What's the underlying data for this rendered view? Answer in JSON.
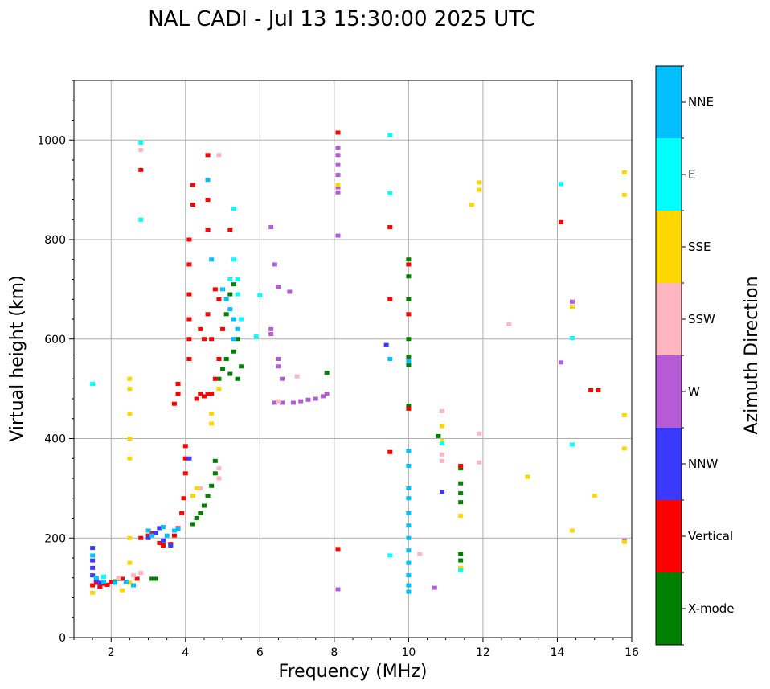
{
  "chart_data": {
    "type": "scatter",
    "title": "NAL CADI - Jul 13 15:30:00 2025 UTC",
    "xlabel": "Frequency (MHz)",
    "ylabel": "Virtual height (km)",
    "xlim": [
      1,
      16
    ],
    "ylim": [
      0,
      1120
    ],
    "xticks": [
      2,
      4,
      6,
      8,
      10,
      12,
      14,
      16
    ],
    "yticks": [
      0,
      200,
      400,
      600,
      800,
      1000
    ],
    "xtick_labels": [
      "2",
      "4",
      "6",
      "8",
      "10",
      "12",
      "14",
      "16"
    ],
    "ytick_labels": [
      "0",
      "200",
      "400",
      "600",
      "800",
      "1000"
    ],
    "grid": true,
    "colorbar": {
      "title": "Azimuth Direction",
      "categories": [
        {
          "label": "X-mode",
          "color": "#008000"
        },
        {
          "label": "Vertical",
          "color": "#ff0000"
        },
        {
          "label": "NNW",
          "color": "#3a3aff"
        },
        {
          "label": "W",
          "color": "#b65bd6"
        },
        {
          "label": "SSW",
          "color": "#ffb6c1"
        },
        {
          "label": "SSE",
          "color": "#ffd700"
        },
        {
          "label": "E",
          "color": "#00ffff"
        },
        {
          "label": "NNE",
          "color": "#00bfff"
        }
      ]
    },
    "series": [
      {
        "name": "X-mode",
        "color": "#008000",
        "points": [
          [
            2.1,
            113
          ],
          [
            2.2,
            118
          ],
          [
            3.1,
            118
          ],
          [
            3.2,
            118
          ],
          [
            4.2,
            228
          ],
          [
            4.3,
            240
          ],
          [
            4.4,
            250
          ],
          [
            4.5,
            265
          ],
          [
            4.6,
            285
          ],
          [
            4.7,
            305
          ],
          [
            4.8,
            330
          ],
          [
            4.8,
            355
          ],
          [
            4.9,
            520
          ],
          [
            5.0,
            540
          ],
          [
            5.1,
            560
          ],
          [
            5.2,
            530
          ],
          [
            5.3,
            575
          ],
          [
            5.4,
            520
          ],
          [
            5.5,
            545
          ],
          [
            5.4,
            600
          ],
          [
            5.2,
            690
          ],
          [
            5.1,
            650
          ],
          [
            5.3,
            710
          ],
          [
            7.8,
            532
          ],
          [
            10.0,
            760
          ],
          [
            10.0,
            680
          ],
          [
            10.0,
            600
          ],
          [
            10.0,
            565
          ],
          [
            10.0,
            548
          ],
          [
            10.0,
            466
          ],
          [
            10.0,
            726
          ],
          [
            10.8,
            405
          ],
          [
            11.4,
            340
          ],
          [
            11.4,
            310
          ],
          [
            11.4,
            290
          ],
          [
            11.4,
            272
          ],
          [
            11.4,
            168
          ],
          [
            11.4,
            155
          ],
          [
            11.4,
            138
          ]
        ]
      },
      {
        "name": "Vertical",
        "color": "#ff0000",
        "points": [
          [
            1.5,
            105
          ],
          [
            1.6,
            110
          ],
          [
            1.7,
            102
          ],
          [
            1.8,
            108
          ],
          [
            1.9,
            106
          ],
          [
            2.0,
            112
          ],
          [
            2.3,
            118
          ],
          [
            2.7,
            118
          ],
          [
            2.8,
            200
          ],
          [
            3.0,
            205
          ],
          [
            3.1,
            210
          ],
          [
            3.3,
            190
          ],
          [
            3.4,
            185
          ],
          [
            3.6,
            188
          ],
          [
            3.7,
            205
          ],
          [
            3.8,
            220
          ],
          [
            3.9,
            250
          ],
          [
            3.95,
            280
          ],
          [
            4.0,
            330
          ],
          [
            4.0,
            360
          ],
          [
            4.0,
            385
          ],
          [
            3.7,
            470
          ],
          [
            3.8,
            490
          ],
          [
            3.8,
            510
          ],
          [
            4.1,
            560
          ],
          [
            4.1,
            600
          ],
          [
            4.1,
            640
          ],
          [
            4.1,
            690
          ],
          [
            4.1,
            750
          ],
          [
            4.1,
            800
          ],
          [
            4.2,
            870
          ],
          [
            4.3,
            480
          ],
          [
            4.4,
            490
          ],
          [
            4.5,
            485
          ],
          [
            4.6,
            490
          ],
          [
            4.7,
            490
          ],
          [
            4.4,
            620
          ],
          [
            4.5,
            600
          ],
          [
            4.6,
            650
          ],
          [
            4.6,
            820
          ],
          [
            4.6,
            880
          ],
          [
            4.7,
            600
          ],
          [
            4.8,
            520
          ],
          [
            4.9,
            560
          ],
          [
            4.8,
            700
          ],
          [
            4.9,
            680
          ],
          [
            5.0,
            620
          ],
          [
            5.2,
            820
          ],
          [
            2.8,
            940
          ],
          [
            4.2,
            910
          ],
          [
            4.6,
            970
          ],
          [
            8.1,
            1015
          ],
          [
            8.1,
            178
          ],
          [
            9.5,
            825
          ],
          [
            9.5,
            680
          ],
          [
            9.5,
            373
          ],
          [
            10.0,
            750
          ],
          [
            10.0,
            650
          ],
          [
            10.0,
            460
          ],
          [
            11.4,
            345
          ],
          [
            14.1,
            835
          ],
          [
            14.9,
            497
          ],
          [
            15.1,
            497
          ]
        ]
      },
      {
        "name": "NNW",
        "color": "#3a3aff",
        "points": [
          [
            1.5,
            180
          ],
          [
            1.5,
            155
          ],
          [
            1.5,
            140
          ],
          [
            1.5,
            125
          ],
          [
            1.6,
            115
          ],
          [
            1.7,
            110
          ],
          [
            3.0,
            200
          ],
          [
            3.2,
            210
          ],
          [
            3.3,
            220
          ],
          [
            3.4,
            195
          ],
          [
            3.6,
            185
          ],
          [
            4.1,
            360
          ],
          [
            9.4,
            588
          ],
          [
            10.9,
            293
          ]
        ]
      },
      {
        "name": "W",
        "color": "#b65bd6",
        "points": [
          [
            6.3,
            825
          ],
          [
            6.4,
            750
          ],
          [
            6.5,
            705
          ],
          [
            6.8,
            695
          ],
          [
            6.3,
            620
          ],
          [
            6.3,
            610
          ],
          [
            6.5,
            560
          ],
          [
            6.5,
            545
          ],
          [
            6.6,
            520
          ],
          [
            6.4,
            472
          ],
          [
            6.6,
            472
          ],
          [
            6.9,
            472
          ],
          [
            7.1,
            475
          ],
          [
            7.3,
            478
          ],
          [
            7.5,
            480
          ],
          [
            7.7,
            485
          ],
          [
            7.8,
            490
          ],
          [
            8.1,
            985
          ],
          [
            8.1,
            970
          ],
          [
            8.1,
            950
          ],
          [
            8.1,
            930
          ],
          [
            8.1,
            905
          ],
          [
            8.1,
            895
          ],
          [
            8.1,
            808
          ],
          [
            8.1,
            97
          ],
          [
            10.7,
            100
          ],
          [
            14.1,
            553
          ],
          [
            14.4,
            675
          ],
          [
            15.8,
            195
          ]
        ]
      },
      {
        "name": "SSW",
        "color": "#ffb6c1",
        "points": [
          [
            2.8,
            980
          ],
          [
            4.9,
            970
          ],
          [
            4.9,
            340
          ],
          [
            4.9,
            320
          ],
          [
            4.4,
            300
          ],
          [
            2.2,
            120
          ],
          [
            2.6,
            125
          ],
          [
            2.8,
            130
          ],
          [
            10.9,
            455
          ],
          [
            10.9,
            368
          ],
          [
            10.9,
            355
          ],
          [
            10.3,
            168
          ],
          [
            11.9,
            410
          ],
          [
            11.9,
            352
          ],
          [
            12.7,
            630
          ],
          [
            6.5,
            475
          ],
          [
            7.0,
            525
          ]
        ]
      },
      {
        "name": "SSE",
        "color": "#ffd700",
        "points": [
          [
            1.5,
            90
          ],
          [
            2.3,
            95
          ],
          [
            2.5,
            110
          ],
          [
            2.5,
            150
          ],
          [
            2.5,
            200
          ],
          [
            2.5,
            360
          ],
          [
            2.5,
            400
          ],
          [
            2.5,
            450
          ],
          [
            2.5,
            500
          ],
          [
            2.5,
            520
          ],
          [
            4.2,
            285
          ],
          [
            4.3,
            300
          ],
          [
            4.7,
            430
          ],
          [
            4.7,
            450
          ],
          [
            4.9,
            500
          ],
          [
            8.1,
            910
          ],
          [
            10.9,
            425
          ],
          [
            10.9,
            395
          ],
          [
            11.4,
            245
          ],
          [
            11.4,
            140
          ],
          [
            11.9,
            900
          ],
          [
            11.9,
            915
          ],
          [
            11.7,
            870
          ],
          [
            13.2,
            323
          ],
          [
            14.4,
            665
          ],
          [
            14.4,
            215
          ],
          [
            15.0,
            285
          ],
          [
            15.8,
            935
          ],
          [
            15.8,
            890
          ],
          [
            15.8,
            447
          ],
          [
            15.8,
            380
          ],
          [
            15.8,
            192
          ]
        ]
      },
      {
        "name": "E",
        "color": "#00ffff",
        "points": [
          [
            1.5,
            510
          ],
          [
            1.8,
            122
          ],
          [
            2.8,
            995
          ],
          [
            2.8,
            840
          ],
          [
            5.3,
            862
          ],
          [
            5.3,
            760
          ],
          [
            5.4,
            720
          ],
          [
            5.4,
            690
          ],
          [
            5.5,
            640
          ],
          [
            5.2,
            720
          ],
          [
            5.9,
            605
          ],
          [
            6.0,
            688
          ],
          [
            9.5,
            1010
          ],
          [
            9.5,
            893
          ],
          [
            9.5,
            165
          ],
          [
            10.9,
            390
          ],
          [
            11.4,
            135
          ],
          [
            14.1,
            912
          ],
          [
            14.4,
            602
          ],
          [
            14.4,
            388
          ]
        ]
      },
      {
        "name": "NNE",
        "color": "#00bfff",
        "points": [
          [
            1.5,
            165
          ],
          [
            1.6,
            120
          ],
          [
            1.8,
            112
          ],
          [
            2.1,
            110
          ],
          [
            2.4,
            112
          ],
          [
            2.6,
            105
          ],
          [
            3.0,
            215
          ],
          [
            3.1,
            205
          ],
          [
            3.4,
            222
          ],
          [
            3.5,
            205
          ],
          [
            3.7,
            215
          ],
          [
            3.8,
            218
          ],
          [
            4.6,
            920
          ],
          [
            4.7,
            760
          ],
          [
            5.0,
            700
          ],
          [
            5.1,
            680
          ],
          [
            5.2,
            660
          ],
          [
            5.3,
            640
          ],
          [
            5.4,
            620
          ],
          [
            5.3,
            600
          ],
          [
            9.5,
            560
          ],
          [
            10.0,
            375
          ],
          [
            10.0,
            345
          ],
          [
            10.0,
            300
          ],
          [
            10.0,
            280
          ],
          [
            10.0,
            250
          ],
          [
            10.0,
            225
          ],
          [
            10.0,
            200
          ],
          [
            10.0,
            175
          ],
          [
            10.0,
            150
          ],
          [
            10.0,
            125
          ],
          [
            10.0,
            105
          ],
          [
            10.0,
            92
          ],
          [
            10.0,
            555
          ]
        ]
      }
    ]
  }
}
